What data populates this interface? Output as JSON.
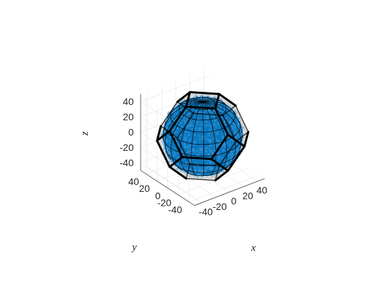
{
  "chart_data": {
    "type": "3d-surface",
    "title": "",
    "xlabel": "x",
    "ylabel": "y",
    "zlabel": "z",
    "xlim": [
      -50,
      50
    ],
    "ylim": [
      -50,
      50
    ],
    "zlim": [
      -50,
      50
    ],
    "xticks": [
      -40,
      -20,
      0,
      20,
      40
    ],
    "yticks": [
      -40,
      -20,
      0,
      20,
      40
    ],
    "zticks": [
      -40,
      -20,
      0,
      20,
      40
    ],
    "xtick_labels": [
      "-40",
      "-20",
      "0",
      "20",
      "40"
    ],
    "ytick_labels": [
      "-40",
      "-20",
      "0",
      "20",
      "40"
    ],
    "ztick_labels": [
      "-40",
      "-20",
      "0",
      "20",
      "40"
    ],
    "grid": true,
    "sphere": {
      "center": [
        0,
        0,
        0
      ],
      "radius": 45
    },
    "polyhedron": {
      "shape": "truncated octahedron",
      "max_abs_coordinate": 47
    },
    "scatter_points": "dense cloud on the sphere surface",
    "colors": {
      "fill": "#0072BD",
      "mesh": "#000000",
      "edges": "#000000",
      "faces": "#D9D9D9",
      "axes": "#262626",
      "grid": "#E6E6E6"
    }
  }
}
